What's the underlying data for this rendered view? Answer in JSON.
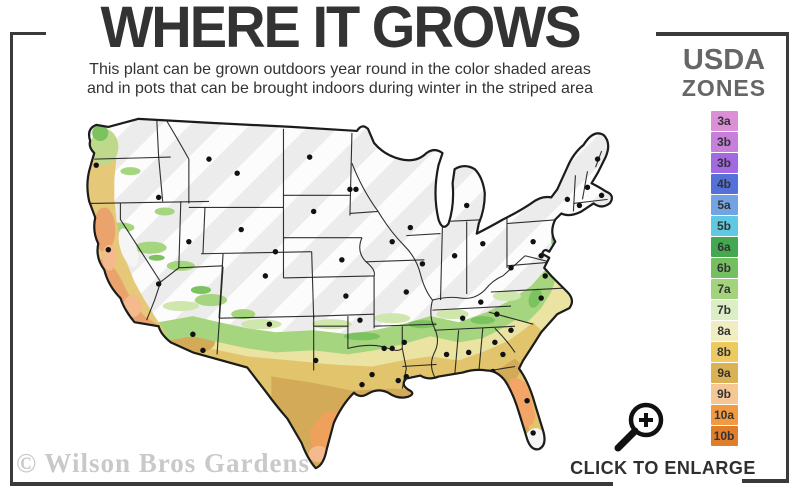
{
  "header": {
    "title": "WHERE IT GROWS",
    "subtitle_line1": "This plant can be grown outdoors year round in the color shaded areas",
    "subtitle_line2": "and in pots that can be brought indoors during winter in the striped area"
  },
  "legend": {
    "title_line1": "USDA",
    "title_line2": "ZONES",
    "zones": [
      {
        "label": "3a",
        "color": "#da8fd6"
      },
      {
        "label": "3b",
        "color": "#c77fdb"
      },
      {
        "label": "3b",
        "color": "#a269e0"
      },
      {
        "label": "4b",
        "color": "#5471d9"
      },
      {
        "label": "5a",
        "color": "#74a3e4"
      },
      {
        "label": "5b",
        "color": "#5fc9e2"
      },
      {
        "label": "6a",
        "color": "#43a84f"
      },
      {
        "label": "6b",
        "color": "#76be62"
      },
      {
        "label": "7a",
        "color": "#a4d37d"
      },
      {
        "label": "7b",
        "color": "#dceec6"
      },
      {
        "label": "8a",
        "color": "#f0eec1"
      },
      {
        "label": "8b",
        "color": "#ecca5f"
      },
      {
        "label": "9a",
        "color": "#d9b255"
      },
      {
        "label": "9b",
        "color": "#f5c794"
      },
      {
        "label": "10a",
        "color": "#f29a3f"
      },
      {
        "label": "10b",
        "color": "#e07e2b"
      }
    ]
  },
  "map": {
    "colors": {
      "frame": "#3a3a3a",
      "title": "#333333",
      "legendtitle": "#666666",
      "watermark": "#c9c9c9",
      "m-base": "#ececec",
      "m-stripe": "#ffffff",
      "m-outline": "#1c1c1c",
      "m-yellow": "#ebe3a2",
      "m-gold": "#e2c46c",
      "m-tan": "#d3ab58",
      "m-orange": "#efa05b",
      "m-salmon": "#f4b98c",
      "m-green": "#a6d57f",
      "m-greendark": "#7cc25f",
      "m-greenpale": "#cfe6ac",
      "m-florange": "#f2a566",
      "m-white": "#f5f5f5",
      "m-coastgold": "#e5c878",
      "m-coastgreen": "#bfd98a",
      "m-caorange": "#eba36e"
    }
  },
  "enlarge": {
    "label": "CLICK TO ENLARGE"
  },
  "footer": {
    "watermark": "© Wilson Bros Gardens"
  },
  "chart_data": {
    "type": "heatmap",
    "title": "WHERE IT GROWS",
    "legend_title": "USDA ZONES",
    "legend_entries": [
      "3a",
      "3b",
      "3b",
      "4b",
      "5a",
      "5b",
      "6a",
      "6b",
      "7a",
      "7b",
      "8a",
      "8b",
      "9a",
      "9b",
      "10a",
      "10b"
    ],
    "annotations": [
      "This plant can be grown outdoors year round in the color shaded areas",
      "and in pots that can be brought indoors during winter in the striped area",
      "CLICK TO ENLARGE",
      "© Wilson Bros Gardens"
    ],
    "regions": [
      {
        "area": "northern US (striped)",
        "meaning": "grow in pots, bring indoors in winter"
      },
      {
        "area": "southern US and coasts (color shaded zones ~6b-10b)",
        "meaning": "grows outdoors year round"
      }
    ],
    "legend_position": "right"
  }
}
